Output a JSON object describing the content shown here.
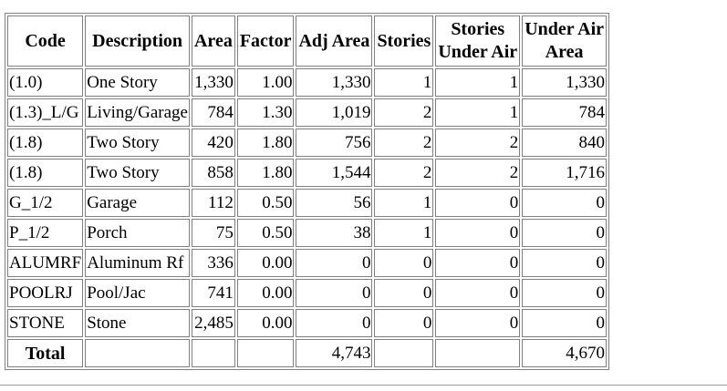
{
  "headers": {
    "code": "Code",
    "description": "Description",
    "area": "Area",
    "factor": "Factor",
    "adj_area": "Adj Area",
    "stories": "Stories",
    "stories_under_air_1": "Stories",
    "stories_under_air_2": "Under Air",
    "under_air_area_1": "Under Air",
    "under_air_area_2": "Area"
  },
  "rows": [
    {
      "code": "(1.0)",
      "description": "One Story",
      "area": "1,330",
      "factor": "1.00",
      "adj_area": "1,330",
      "stories": "1",
      "stories_under_air": "1",
      "under_air_area": "1,330"
    },
    {
      "code": "(1.3)_L/G",
      "description": "Living/Garage",
      "area": "784",
      "factor": "1.30",
      "adj_area": "1,019",
      "stories": "2",
      "stories_under_air": "1",
      "under_air_area": "784"
    },
    {
      "code": "(1.8)",
      "description": "Two Story",
      "area": "420",
      "factor": "1.80",
      "adj_area": "756",
      "stories": "2",
      "stories_under_air": "2",
      "under_air_area": "840"
    },
    {
      "code": "(1.8)",
      "description": "Two Story",
      "area": "858",
      "factor": "1.80",
      "adj_area": "1,544",
      "stories": "2",
      "stories_under_air": "2",
      "under_air_area": "1,716"
    },
    {
      "code": "G_1/2",
      "description": "Garage",
      "area": "112",
      "factor": "0.50",
      "adj_area": "56",
      "stories": "1",
      "stories_under_air": "0",
      "under_air_area": "0"
    },
    {
      "code": "P_1/2",
      "description": "Porch",
      "area": "75",
      "factor": "0.50",
      "adj_area": "38",
      "stories": "1",
      "stories_under_air": "0",
      "under_air_area": "0"
    },
    {
      "code": "ALUMRF",
      "description": "Aluminum Rf",
      "area": "336",
      "factor": "0.00",
      "adj_area": "0",
      "stories": "0",
      "stories_under_air": "0",
      "under_air_area": "0"
    },
    {
      "code": "POOLRJ",
      "description": "Pool/Jac",
      "area": "741",
      "factor": "0.00",
      "adj_area": "0",
      "stories": "0",
      "stories_under_air": "0",
      "under_air_area": "0"
    },
    {
      "code": "STONE",
      "description": "Stone",
      "area": "2,485",
      "factor": "0.00",
      "adj_area": "0",
      "stories": "0",
      "stories_under_air": "0",
      "under_air_area": "0"
    }
  ],
  "total": {
    "label": "Total",
    "adj_area": "4,743",
    "under_air_area": "4,670"
  }
}
